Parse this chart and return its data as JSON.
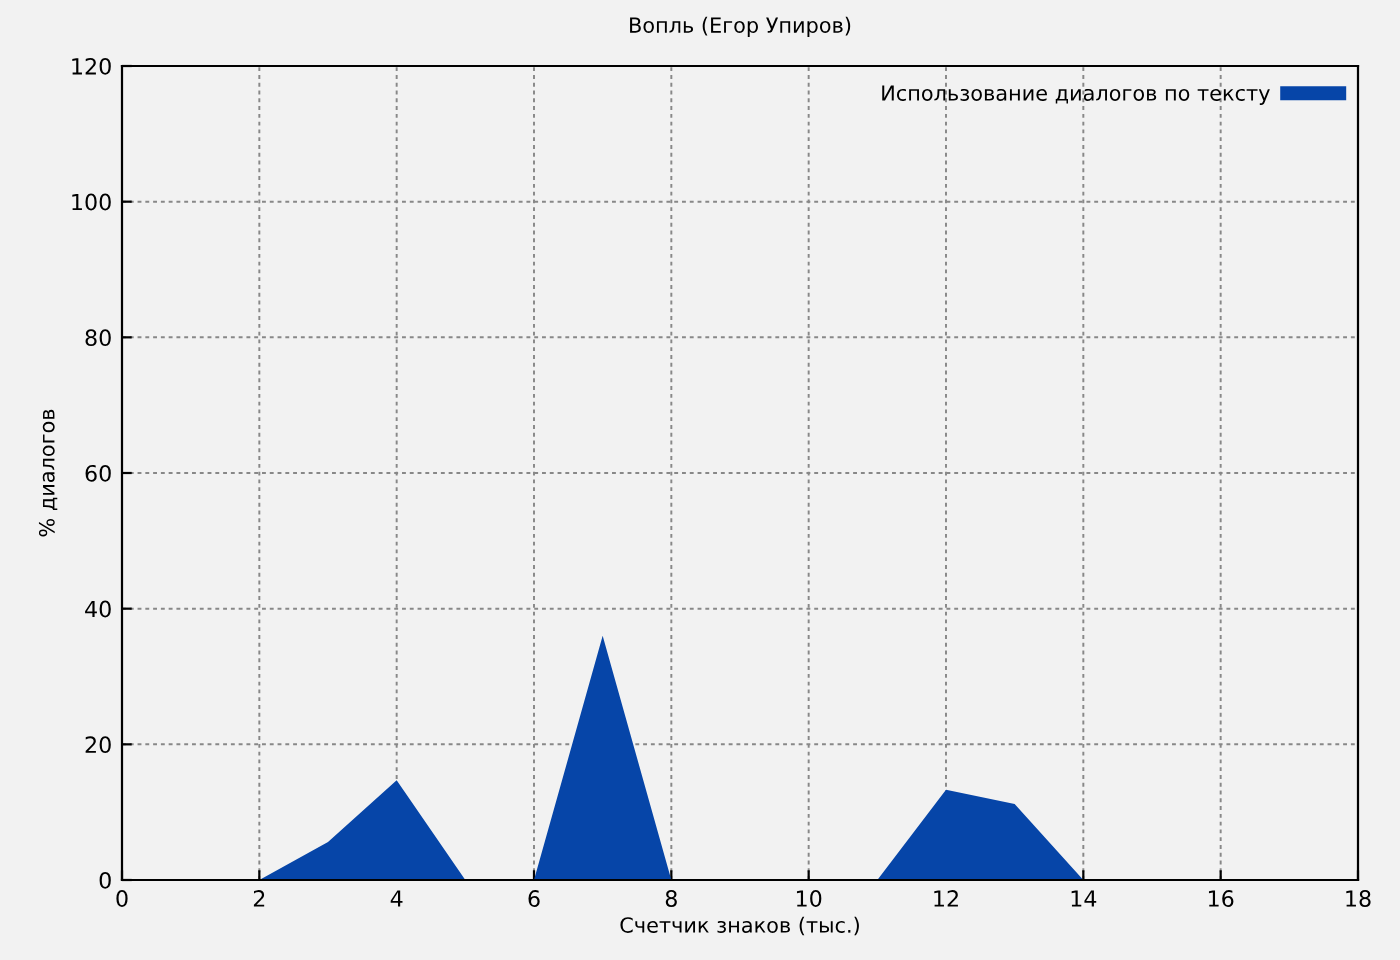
{
  "chart_data": {
    "type": "area",
    "title": "Вопль (Егор Упиров)",
    "xlabel": "Счетчик знаков (тыс.)",
    "ylabel": "% диалогов",
    "x": [
      0,
      1,
      2,
      3,
      4,
      5,
      6,
      7,
      8,
      9,
      10,
      11,
      12,
      13,
      14,
      15,
      16,
      17,
      18
    ],
    "series": [
      {
        "name": "Использование диалогов по тексту",
        "color": "#0645a8",
        "values": [
          0,
          0,
          0,
          5.6,
          14.7,
          0,
          0,
          36,
          0,
          0,
          0,
          0,
          13.3,
          11.2,
          0,
          0,
          0,
          0,
          0
        ]
      }
    ],
    "xlim": [
      0,
      18
    ],
    "xticks": [
      0,
      2,
      4,
      6,
      8,
      10,
      12,
      14,
      16,
      18
    ],
    "ylim": [
      0,
      120
    ],
    "yticks": [
      0,
      20,
      40,
      60,
      80,
      100,
      120
    ],
    "grid": true,
    "legend": "top right"
  }
}
